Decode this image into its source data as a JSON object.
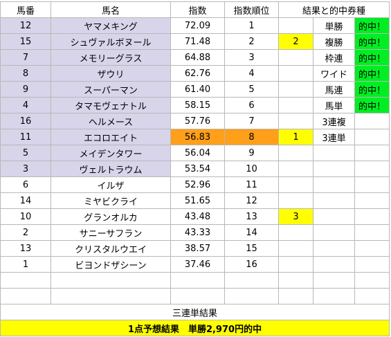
{
  "headers": {
    "uma_ban": "馬番",
    "uma_mei": "馬名",
    "shisu": "指数",
    "shisu_juni": "指数順位",
    "kekka": "結果と的中券種"
  },
  "rows": [
    {
      "ban": "12",
      "name": "ヤマメキング",
      "shisu": "72.09",
      "rank": "1",
      "result": "",
      "ticket": "単勝",
      "hit": "的中！"
    },
    {
      "ban": "15",
      "name": "シュヴァルボヌール",
      "shisu": "71.48",
      "rank": "2",
      "result": "2",
      "ticket": "複勝",
      "hit": "的中！"
    },
    {
      "ban": "7",
      "name": "メモリーグラス",
      "shisu": "64.88",
      "rank": "3",
      "result": "",
      "ticket": "枠連",
      "hit": "的中！"
    },
    {
      "ban": "8",
      "name": "ザウリ",
      "shisu": "62.76",
      "rank": "4",
      "result": "",
      "ticket": "ワイド",
      "hit": "的中！"
    },
    {
      "ban": "9",
      "name": "スーパーマン",
      "shisu": "61.40",
      "rank": "5",
      "result": "",
      "ticket": "馬連",
      "hit": "的中！"
    },
    {
      "ban": "4",
      "name": "タマモヴェナトル",
      "shisu": "58.15",
      "rank": "6",
      "result": "",
      "ticket": "馬単",
      "hit": "的中！"
    },
    {
      "ban": "16",
      "name": "ヘルメース",
      "shisu": "57.76",
      "rank": "7",
      "result": "",
      "ticket": "3連複",
      "hit": ""
    },
    {
      "ban": "11",
      "name": "エコロエイト",
      "shisu": "56.83",
      "rank": "8",
      "result": "1",
      "ticket": "3連単",
      "hit": ""
    },
    {
      "ban": "5",
      "name": "メイデンタワー",
      "shisu": "56.04",
      "rank": "9",
      "result": "",
      "ticket": "",
      "hit": ""
    },
    {
      "ban": "3",
      "name": "ヴェルトラウム",
      "shisu": "53.54",
      "rank": "10",
      "result": "",
      "ticket": "",
      "hit": ""
    },
    {
      "ban": "6",
      "name": "イルザ",
      "shisu": "52.96",
      "rank": "11",
      "result": "",
      "ticket": "",
      "hit": ""
    },
    {
      "ban": "14",
      "name": "ミヤビクライ",
      "shisu": "51.65",
      "rank": "12",
      "result": "",
      "ticket": "",
      "hit": ""
    },
    {
      "ban": "10",
      "name": "グランオルカ",
      "shisu": "43.48",
      "rank": "13",
      "result": "3",
      "ticket": "",
      "hit": ""
    },
    {
      "ban": "2",
      "name": "サニーサフラン",
      "shisu": "43.33",
      "rank": "14",
      "result": "",
      "ticket": "",
      "hit": ""
    },
    {
      "ban": "13",
      "name": "クリスタルウエイ",
      "shisu": "38.57",
      "rank": "15",
      "result": "",
      "ticket": "",
      "hit": ""
    },
    {
      "ban": "1",
      "name": "ビヨンドザシーン",
      "shisu": "37.46",
      "rank": "16",
      "result": "",
      "ticket": "",
      "hit": ""
    }
  ],
  "sanrentan_label": "三連単結果",
  "summary": "1点予想結果　単勝2,970円的中",
  "colors": {
    "lavender": "#d8d4ea",
    "orange": "#ff9f1a",
    "yellow": "#ffff00",
    "green": "#00ee22"
  }
}
